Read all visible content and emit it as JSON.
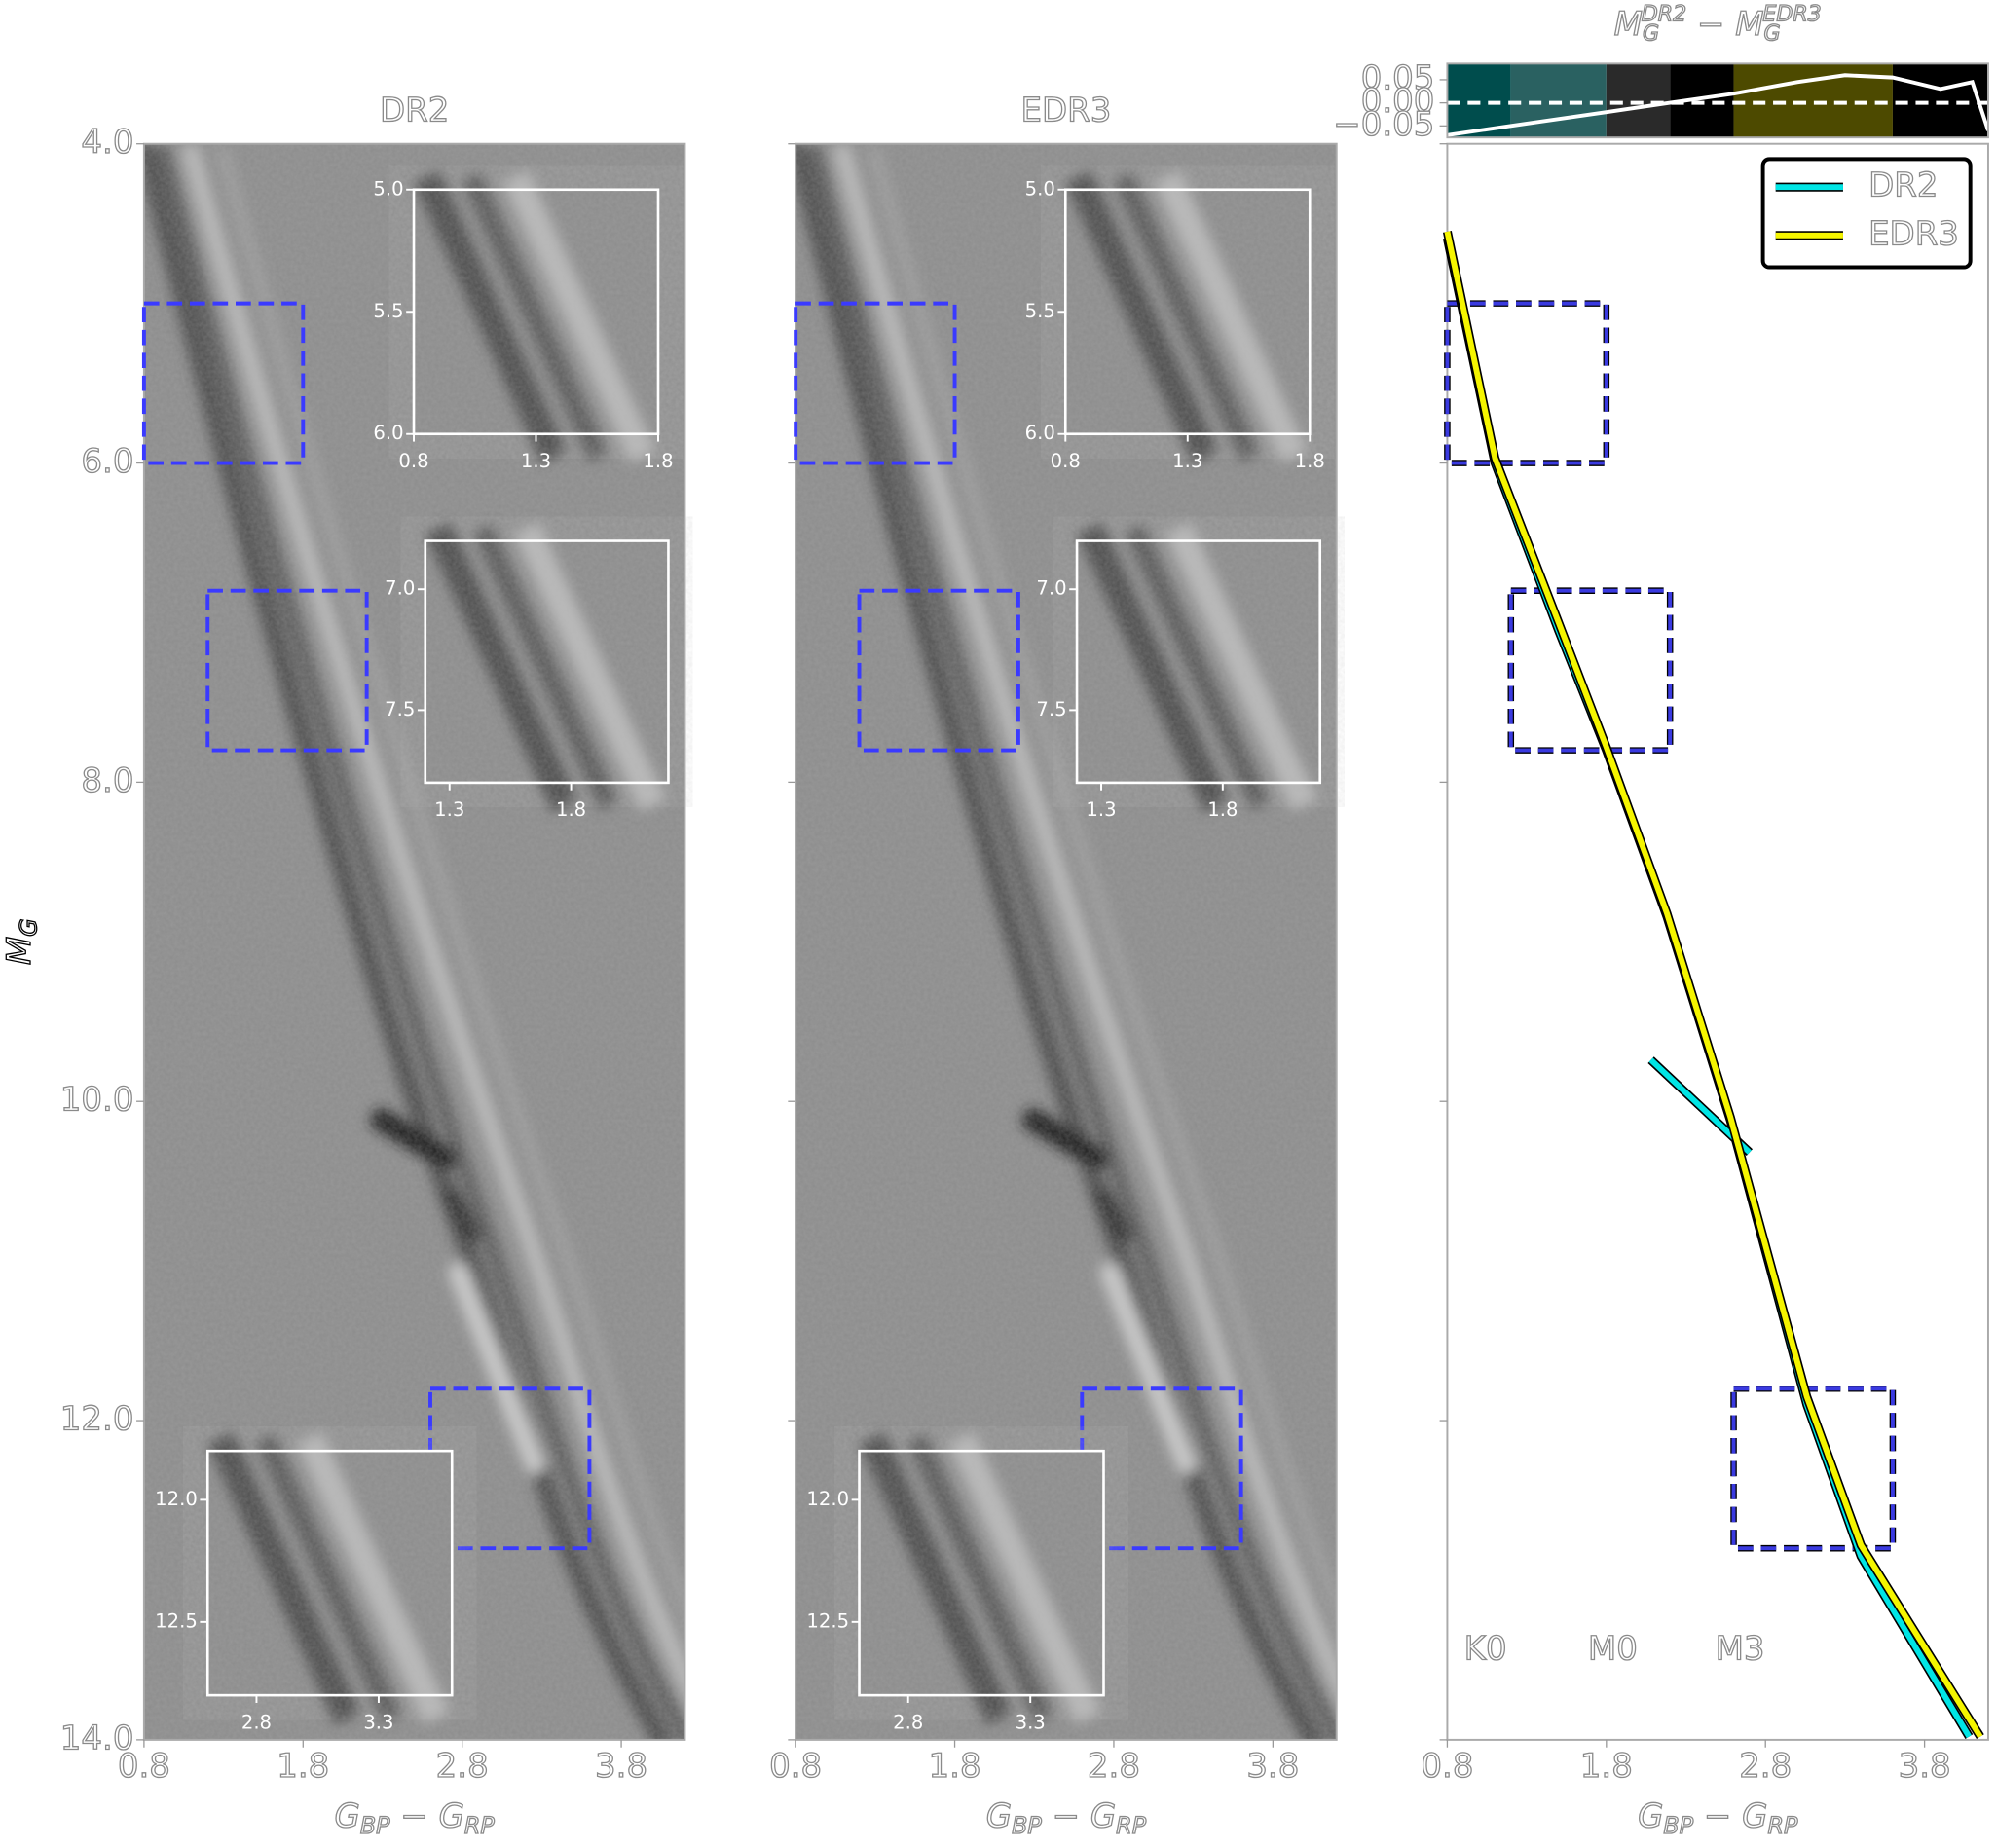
{
  "chart_data": [
    {
      "type": "image",
      "title": "DR2",
      "xlim": [
        0.8,
        4.2
      ],
      "ylim": [
        4,
        14
      ],
      "y_inverted": true,
      "xticks": [
        0.8,
        1.8,
        2.8,
        3.8
      ],
      "yticks": [
        {
          "value": 4,
          "label": "4.0"
        },
        {
          "value": 6,
          "label": "6.0"
        },
        {
          "value": 8,
          "label": "8.0"
        },
        {
          "value": 10,
          "label": "10.0"
        },
        {
          "value": 12,
          "label": "12.0"
        },
        {
          "value": 14,
          "label": "14.0"
        }
      ],
      "xlabel": [
        "G",
        "BP",
        " − G",
        "RP"
      ],
      "ylabel": [
        "M",
        "G"
      ],
      "insets": [
        {
          "xlim": [
            0.8,
            1.8
          ],
          "ylim": [
            5,
            6
          ],
          "xticks": [
            0.8,
            1.3,
            1.8
          ],
          "yticks": [
            {
              "value": 5,
              "label": "5.0"
            },
            {
              "value": 5.5,
              "label": "5.5"
            },
            {
              "value": 6,
              "label": "6.0"
            }
          ]
        },
        {
          "xlim": [
            1.2,
            2.2
          ],
          "ylim": [
            6.8,
            7.8
          ],
          "xticks": [
            1.3,
            1.8
          ],
          "yticks": [
            {
              "value": 7,
              "label": "7.0"
            },
            {
              "value": 7.5,
              "label": "7.5"
            }
          ]
        },
        {
          "xlim": [
            2.6,
            3.6
          ],
          "ylim": [
            11.8,
            12.8
          ],
          "xticks": [
            2.8,
            3.3
          ],
          "yticks": [
            {
              "value": 12,
              "label": "12.0"
            },
            {
              "value": 12.5,
              "label": "12.5"
            }
          ]
        }
      ]
    },
    {
      "type": "image",
      "title": "EDR3",
      "xlim": [
        0.8,
        4.2
      ],
      "ylim": [
        4,
        14
      ],
      "y_inverted": true,
      "xticks": [
        0.8,
        1.8,
        2.8,
        3.8
      ],
      "yticks": [
        4,
        6,
        8,
        10,
        12,
        14
      ],
      "xlabel": [
        "G",
        "BP",
        " − G",
        "RP"
      ],
      "insets": [
        {
          "xlim": [
            0.8,
            1.8
          ],
          "ylim": [
            5,
            6
          ],
          "xticks": [
            0.8,
            1.3,
            1.8
          ],
          "yticks": [
            {
              "value": 5,
              "label": "5.0"
            },
            {
              "value": 5.5,
              "label": "5.5"
            },
            {
              "value": 6,
              "label": "6.0"
            }
          ]
        },
        {
          "xlim": [
            1.2,
            2.2
          ],
          "ylim": [
            6.8,
            7.8
          ],
          "xticks": [
            1.3,
            1.8
          ],
          "yticks": [
            {
              "value": 7,
              "label": "7.0"
            },
            {
              "value": 7.5,
              "label": "7.5"
            }
          ]
        },
        {
          "xlim": [
            2.6,
            3.6
          ],
          "ylim": [
            11.8,
            12.8
          ],
          "xticks": [
            2.8,
            3.3
          ],
          "yticks": [
            {
              "value": 12,
              "label": "12.0"
            },
            {
              "value": 12.5,
              "label": "12.5"
            }
          ]
        }
      ]
    },
    {
      "type": "line",
      "xlim": [
        0.8,
        4.2
      ],
      "ylim": [
        4,
        14
      ],
      "y_inverted": true,
      "xticks": [
        0.8,
        1.8,
        2.8,
        3.8
      ],
      "yticks": [
        4,
        6,
        8,
        10,
        12,
        14
      ],
      "xlabel": [
        "G",
        "BP",
        " − G",
        "RP"
      ],
      "series": [
        {
          "name": "DR2",
          "color": "#00e5e5",
          "x": [
            0.8,
            1.1,
            1.5,
            1.8,
            2.18,
            2.58,
            3.06,
            3.4,
            4.08,
            null,
            2.08,
            2.7
          ],
          "values": [
            4.59,
            6.0,
            7.05,
            7.8,
            8.84,
            10.12,
            11.9,
            12.85,
            13.98,
            null,
            9.74,
            10.32
          ]
        },
        {
          "name": "EDR3",
          "color": "#f5f500",
          "x": [
            0.8,
            1.1,
            1.5,
            1.8,
            2.18,
            2.58,
            3.06,
            3.4,
            4.15
          ],
          "values": [
            4.55,
            5.97,
            7.0,
            7.78,
            8.82,
            10.1,
            11.85,
            12.78,
            13.98
          ]
        }
      ],
      "legend": "upper right",
      "annotations": [
        {
          "text": "K0",
          "x": 1.04,
          "y": 13.44
        },
        {
          "text": "M0",
          "x": 1.84,
          "y": 13.44
        },
        {
          "text": "M3",
          "x": 2.64,
          "y": 13.44
        }
      ],
      "regions": [
        {
          "xlim": [
            0.8,
            1.8
          ],
          "ylim": [
            5,
            6
          ]
        },
        {
          "xlim": [
            1.2,
            2.2
          ],
          "ylim": [
            6.8,
            7.8
          ]
        },
        {
          "xlim": [
            2.6,
            3.6
          ],
          "ylim": [
            11.8,
            12.8
          ]
        }
      ],
      "top_panel": {
        "title": [
          "M",
          "G",
          "DR2",
          " − M",
          "G",
          "EDR3"
        ],
        "ylim": [
          -0.075,
          0.085
        ],
        "yticks": [
          {
            "value": 0.05,
            "label": "0.05"
          },
          {
            "value": 0,
            "label": "0.00"
          },
          {
            "value": -0.05,
            "label": "−0.05"
          }
        ],
        "hline": 0,
        "bands": [
          {
            "x0": 0.8,
            "x1": 1.2,
            "color": "#004d4d"
          },
          {
            "x0": 1.2,
            "x1": 1.8,
            "color": "#2a6161"
          },
          {
            "x0": 1.8,
            "x1": 2.2,
            "color": "#2a2a2a"
          },
          {
            "x0": 2.2,
            "x1": 2.6,
            "color": "#000000"
          },
          {
            "x0": 2.6,
            "x1": 3.6,
            "color": "#4d4a00"
          },
          {
            "x0": 3.6,
            "x1": 4.2,
            "color": "#000000"
          }
        ],
        "curve": {
          "x": [
            0.8,
            1.2,
            1.8,
            2.2,
            2.6,
            3.0,
            3.3,
            3.6,
            3.9,
            4.1,
            4.2
          ],
          "values": [
            -0.07,
            -0.05,
            -0.02,
            0.0,
            0.02,
            0.045,
            0.06,
            0.055,
            0.03,
            0.045,
            -0.06
          ]
        }
      }
    }
  ]
}
